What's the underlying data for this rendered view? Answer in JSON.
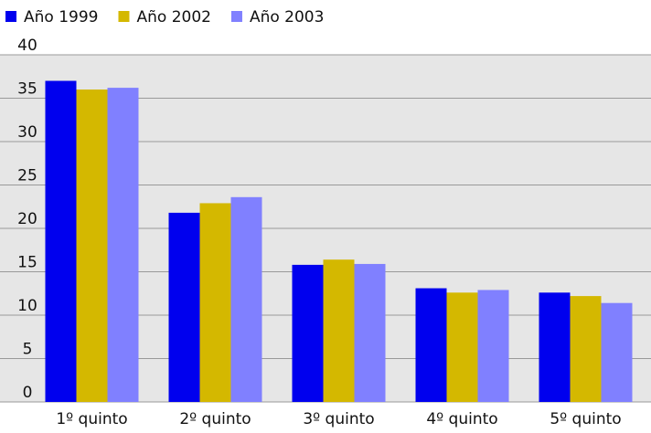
{
  "chart_data": {
    "type": "bar",
    "categories": [
      "1º quinto",
      "2º quinto",
      "3º quinto",
      "4º quinto",
      "5º quinto"
    ],
    "series": [
      {
        "name": "Año 1999",
        "color": "#0000ee",
        "values": [
          37,
          21.8,
          15.8,
          13.1,
          12.6
        ]
      },
      {
        "name": "Año 2002",
        "color": "#d4b800",
        "values": [
          36,
          22.9,
          16.4,
          12.6,
          12.2
        ]
      },
      {
        "name": "Año 2003",
        "color": "#8080ff",
        "values": [
          36.2,
          23.6,
          15.9,
          12.9,
          11.4
        ]
      }
    ],
    "ylim": [
      0,
      40
    ],
    "yticks": [
      0,
      5,
      10,
      15,
      20,
      25,
      30,
      35,
      40
    ],
    "grid": true,
    "legend": "top-left"
  }
}
